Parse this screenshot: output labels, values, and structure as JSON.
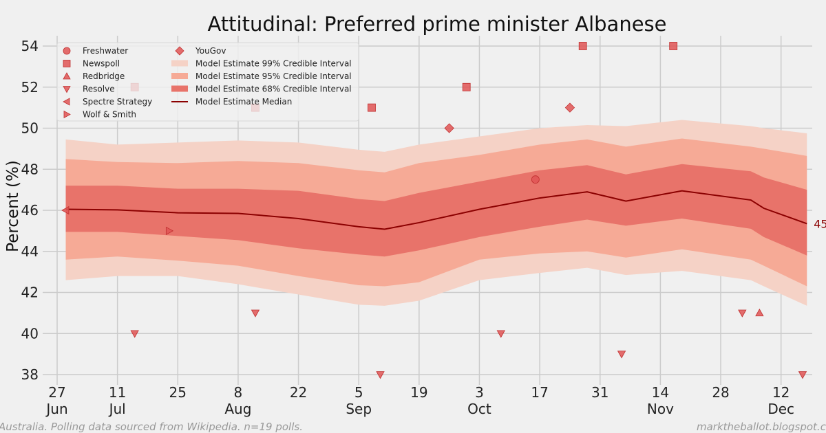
{
  "chart_data": {
    "type": "line",
    "title": "Attitudinal: Preferred prime minister Albanese",
    "ylabel": "Percent (%)",
    "xlabel": "",
    "ylim": [
      38,
      54
    ],
    "yticks": [
      38,
      40,
      42,
      44,
      46,
      48,
      50,
      52,
      54
    ],
    "xlim": [
      "2025-06-27",
      "2025-12-18"
    ],
    "xticks": [
      {
        "date": "2025-06-27",
        "day": "27",
        "month": "Jun"
      },
      {
        "date": "2025-07-11",
        "day": "11",
        "month": "Jul"
      },
      {
        "date": "2025-07-25",
        "day": "25",
        "month": ""
      },
      {
        "date": "2025-08-08",
        "day": "8",
        "month": "Aug"
      },
      {
        "date": "2025-08-22",
        "day": "22",
        "month": ""
      },
      {
        "date": "2025-09-05",
        "day": "5",
        "month": "Sep"
      },
      {
        "date": "2025-09-19",
        "day": "19",
        "month": ""
      },
      {
        "date": "2025-10-03",
        "day": "3",
        "month": "Oct"
      },
      {
        "date": "2025-10-17",
        "day": "17",
        "month": ""
      },
      {
        "date": "2025-10-31",
        "day": "31",
        "month": ""
      },
      {
        "date": "2025-11-14",
        "day": "14",
        "month": "Nov"
      },
      {
        "date": "2025-11-28",
        "day": "28",
        "month": ""
      },
      {
        "date": "2025-12-12",
        "day": "12",
        "month": "Dec"
      }
    ],
    "grid": true,
    "legend_placement": "top-left",
    "model": {
      "dates": [
        "2025-06-29",
        "2025-07-11",
        "2025-07-25",
        "2025-08-08",
        "2025-08-22",
        "2025-09-05",
        "2025-09-11",
        "2025-09-19",
        "2025-10-03",
        "2025-10-17",
        "2025-10-28",
        "2025-11-06",
        "2025-11-19",
        "2025-12-05",
        "2025-12-08",
        "2025-12-18"
      ],
      "median": [
        46.05,
        46.02,
        45.88,
        45.85,
        45.6,
        45.2,
        45.08,
        45.4,
        46.05,
        46.6,
        46.9,
        46.45,
        46.95,
        46.5,
        46.1,
        45.35
      ],
      "ci68_low": [
        44.95,
        44.95,
        44.75,
        44.55,
        44.15,
        43.85,
        43.75,
        44.05,
        44.7,
        45.2,
        45.55,
        45.25,
        45.6,
        45.1,
        44.7,
        43.8
      ],
      "ci68_high": [
        47.2,
        47.2,
        47.05,
        47.05,
        46.95,
        46.55,
        46.45,
        46.85,
        47.4,
        47.95,
        48.2,
        47.75,
        48.25,
        47.9,
        47.6,
        47.0
      ],
      "ci95_low": [
        43.6,
        43.75,
        43.55,
        43.3,
        42.8,
        42.35,
        42.3,
        42.5,
        43.6,
        43.9,
        44.0,
        43.7,
        44.1,
        43.6,
        43.3,
        42.3
      ],
      "ci95_high": [
        48.5,
        48.35,
        48.3,
        48.4,
        48.3,
        47.95,
        47.85,
        48.3,
        48.7,
        49.2,
        49.45,
        49.1,
        49.5,
        49.1,
        49.0,
        48.65
      ],
      "ci99_low": [
        42.6,
        42.8,
        42.8,
        42.4,
        41.9,
        41.4,
        41.35,
        41.6,
        42.6,
        42.95,
        43.2,
        42.85,
        43.05,
        42.6,
        42.3,
        41.35
      ],
      "ci99_high": [
        49.45,
        49.2,
        49.3,
        49.4,
        49.3,
        48.95,
        48.85,
        49.2,
        49.6,
        50.0,
        50.15,
        50.1,
        50.4,
        50.1,
        50.0,
        49.75
      ],
      "end_label": "45"
    },
    "polls": [
      {
        "pollster": "Newspoll",
        "marker": "square",
        "points": [
          [
            "2025-07-15",
            52
          ],
          [
            "2025-08-12",
            51
          ],
          [
            "2025-09-08",
            51
          ],
          [
            "2025-09-30",
            52
          ],
          [
            "2025-10-27",
            54
          ],
          [
            "2025-11-17",
            54
          ]
        ]
      },
      {
        "pollster": "Resolve",
        "marker": "triangle-down",
        "points": [
          [
            "2025-07-15",
            40
          ],
          [
            "2025-08-12",
            41
          ],
          [
            "2025-09-10",
            38
          ],
          [
            "2025-10-08",
            40
          ],
          [
            "2025-11-05",
            39
          ],
          [
            "2025-12-03",
            41
          ],
          [
            "2025-12-17",
            38
          ]
        ]
      },
      {
        "pollster": "Redbridge",
        "marker": "triangle-up",
        "points": [
          [
            "2025-12-07",
            41
          ]
        ]
      },
      {
        "pollster": "Freshwater",
        "marker": "circle",
        "points": [
          [
            "2025-10-16",
            47.5
          ]
        ]
      },
      {
        "pollster": "YouGov",
        "marker": "diamond",
        "points": [
          [
            "2025-09-26",
            50
          ],
          [
            "2025-10-24",
            51
          ]
        ]
      },
      {
        "pollster": "Spectre Strategy",
        "marker": "triangle-left",
        "points": [
          [
            "2025-06-29",
            46
          ]
        ]
      },
      {
        "pollster": "Wolf & Smith",
        "marker": "triangle-right",
        "points": [
          [
            "2025-07-23",
            45
          ]
        ]
      }
    ],
    "legend": {
      "col1": [
        {
          "label": "Freshwater",
          "marker": "circle"
        },
        {
          "label": "Newspoll",
          "marker": "square"
        },
        {
          "label": "Redbridge",
          "marker": "triangle-up"
        },
        {
          "label": "Resolve",
          "marker": "triangle-down"
        },
        {
          "label": "Spectre Strategy",
          "marker": "triangle-left"
        },
        {
          "label": "Wolf & Smith",
          "marker": "triangle-right"
        }
      ],
      "col2": [
        {
          "label": "YouGov",
          "marker": "diamond"
        },
        {
          "label": "Model Estimate 99% Credible Interval",
          "marker": "band99"
        },
        {
          "label": "Model Estimate 95% Credible Interval",
          "marker": "band95"
        },
        {
          "label": "Model Estimate 68% Credible Interval",
          "marker": "band68"
        },
        {
          "label": "Model Estimate Median",
          "marker": "line"
        }
      ]
    },
    "colors": {
      "background": "#f0f0f0",
      "grid": "#cbcbcb",
      "ci99": "#f5d2c6",
      "ci95": "#f6aa96",
      "ci68": "#e8736a",
      "median": "#8b0000",
      "marker": "#e05555"
    }
  },
  "footer": {
    "left": "Australia. Polling data sourced from Wikipedia. n=19 polls.",
    "right": "marktheballot.blogspot.com"
  }
}
